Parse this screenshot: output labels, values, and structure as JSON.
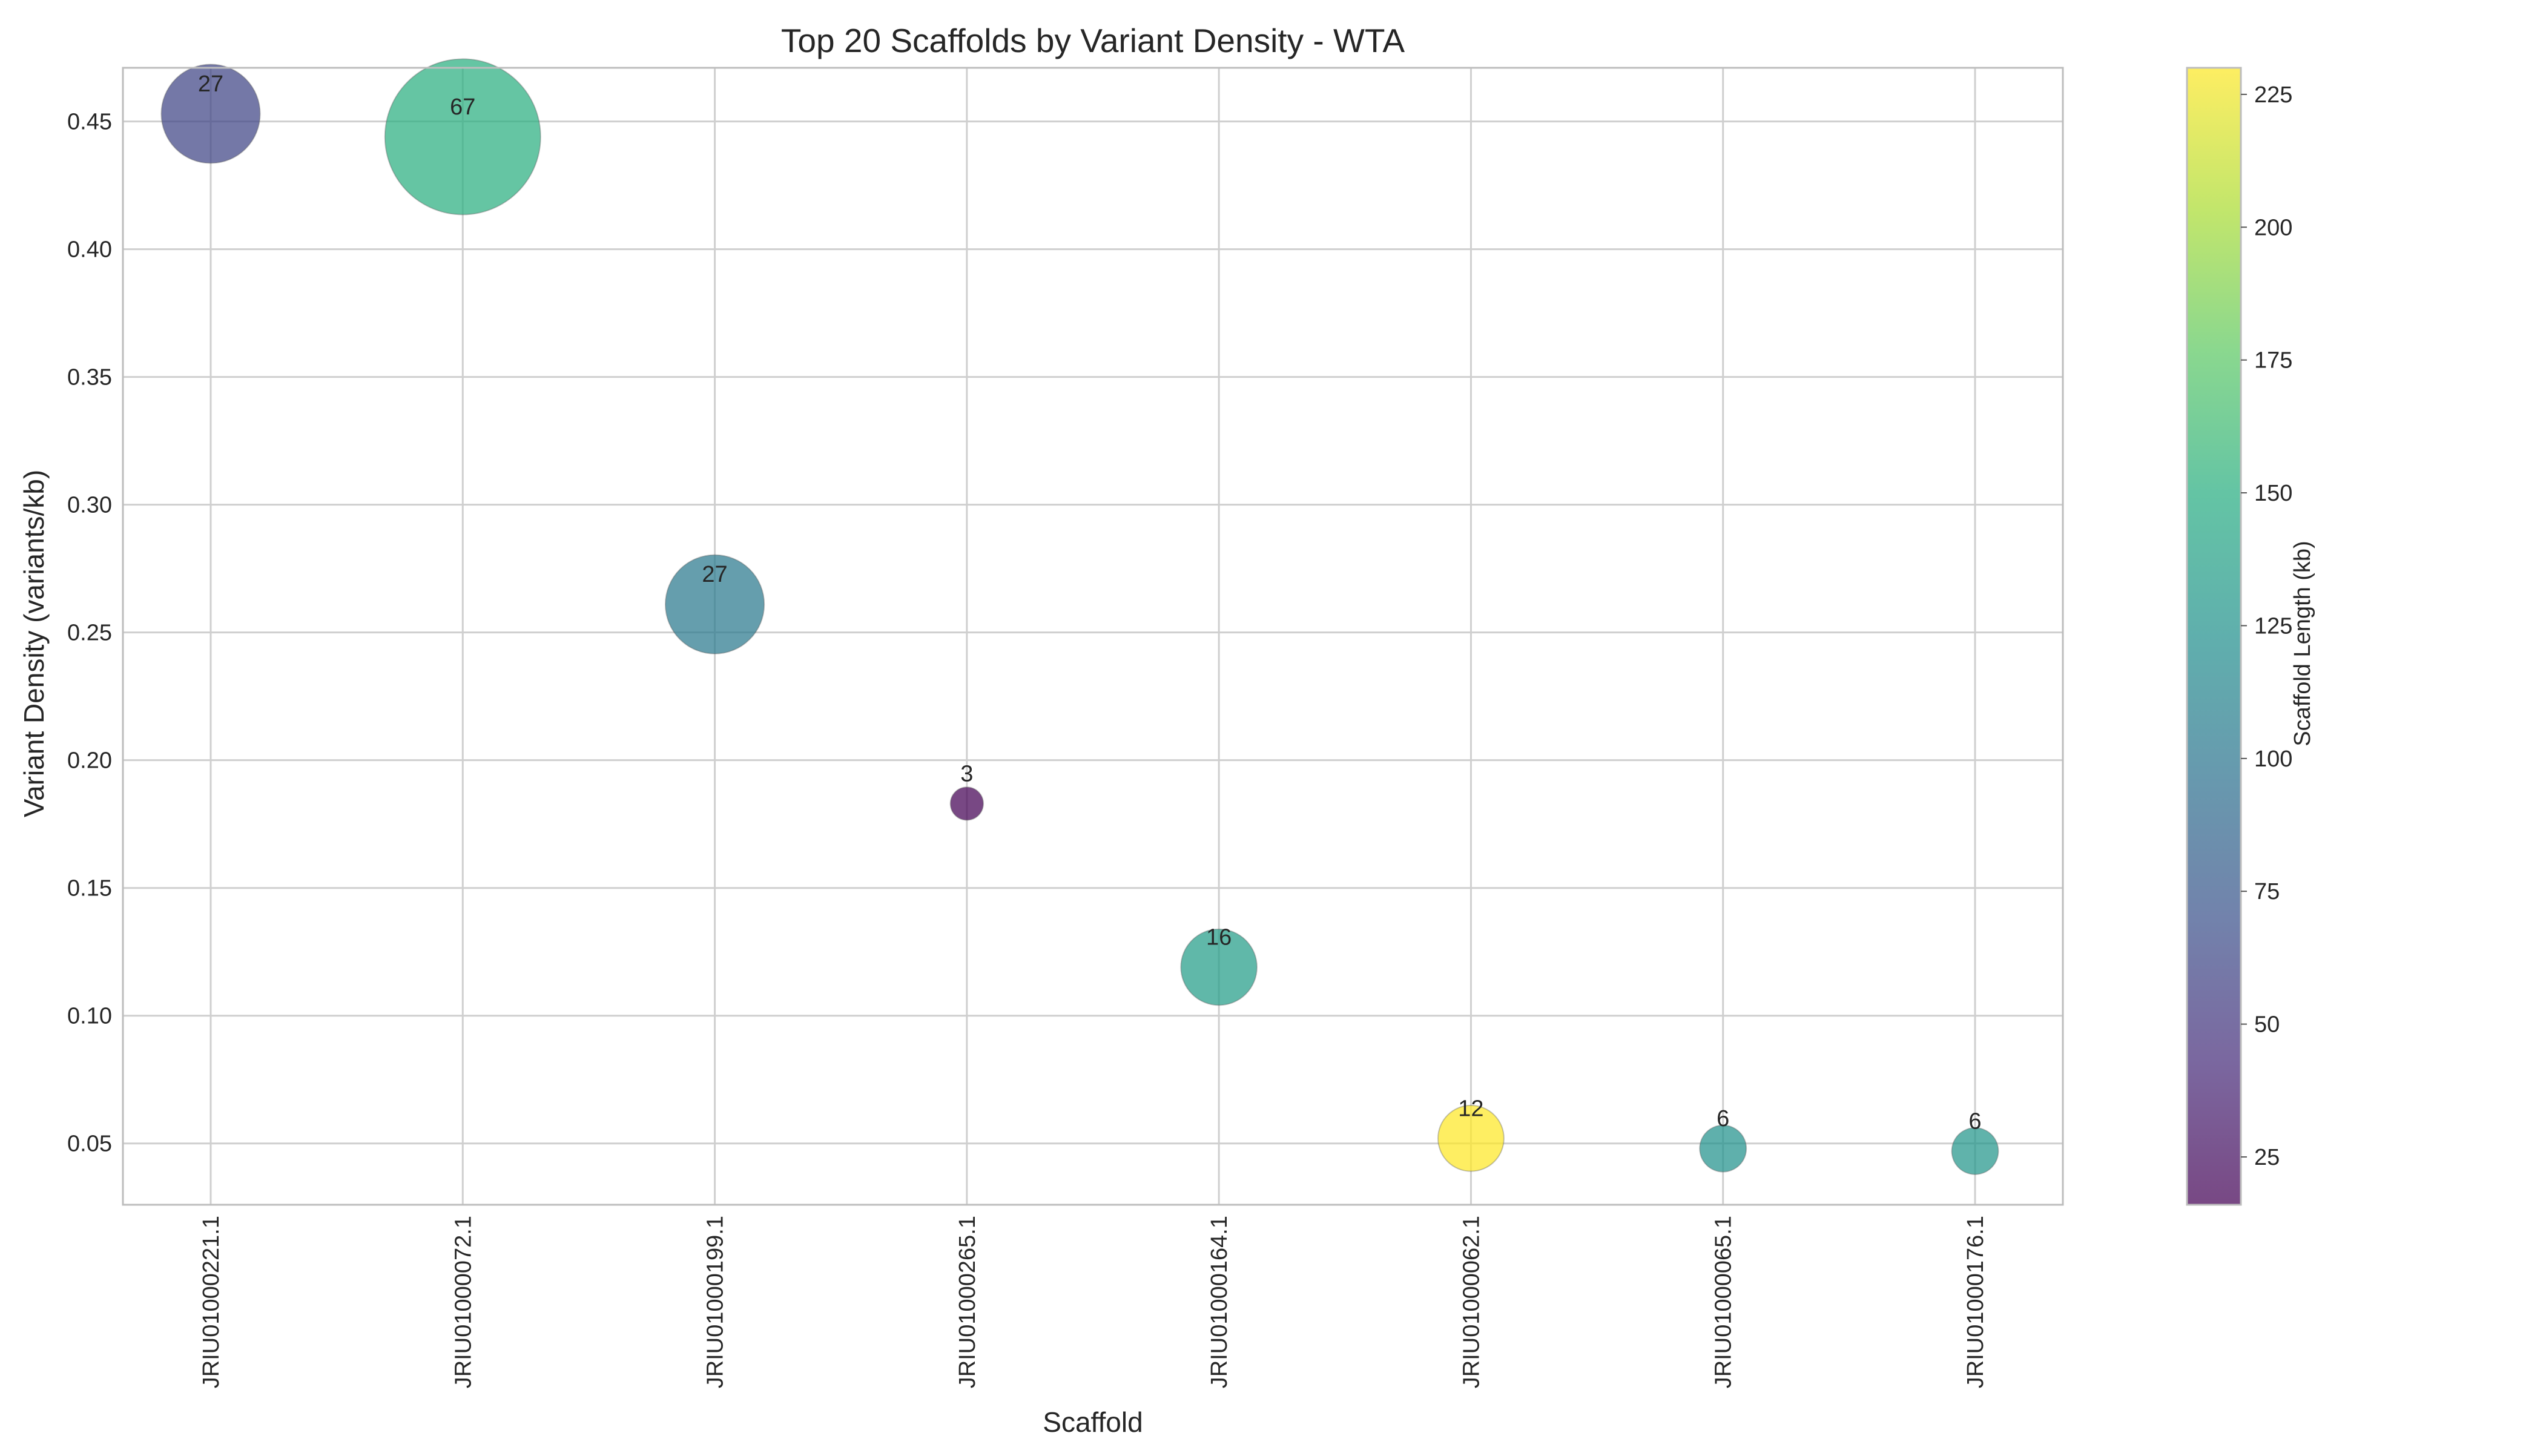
{
  "chart_data": {
    "type": "scatter",
    "title": "Top 20 Scaffolds by Variant Density - WTA",
    "xlabel": "Scaffold",
    "ylabel": "Variant Density (variants/kb)",
    "categories": [
      "JRIU01000221.1",
      "JRIU01000072.1",
      "JRIU01000199.1",
      "JRIU01000265.1",
      "JRIU01000164.1",
      "JRIU01000062.1",
      "JRIU01000065.1",
      "JRIU01000176.1"
    ],
    "values": [
      0.453,
      0.444,
      0.261,
      0.183,
      0.119,
      0.052,
      0.048,
      0.047
    ],
    "variant_counts": [
      27,
      67,
      27,
      3,
      16,
      12,
      6,
      6
    ],
    "point_labels": [
      "27",
      "67",
      "27",
      "3",
      "16",
      "12",
      "6",
      "6"
    ],
    "scaffold_length_kb": [
      60,
      151,
      103,
      16,
      134,
      230,
      125,
      128
    ],
    "ylim": [
      0.026,
      0.471
    ],
    "yticks": [
      0.05,
      0.1,
      0.15,
      0.2,
      0.25,
      0.3,
      0.35,
      0.4,
      0.45
    ],
    "ytick_labels": [
      "0.05",
      "0.10",
      "0.15",
      "0.20",
      "0.25",
      "0.30",
      "0.35",
      "0.40",
      "0.45"
    ],
    "grid": true,
    "colorbar": {
      "label": "Scaffold Length (kb)",
      "colormap": "viridis",
      "range": [
        16,
        230
      ],
      "ticks": [
        25,
        50,
        75,
        100,
        125,
        150,
        175,
        200,
        225
      ],
      "tick_labels": [
        "25",
        "50",
        "75",
        "100",
        "125",
        "150",
        "175",
        "200",
        "225"
      ]
    }
  }
}
